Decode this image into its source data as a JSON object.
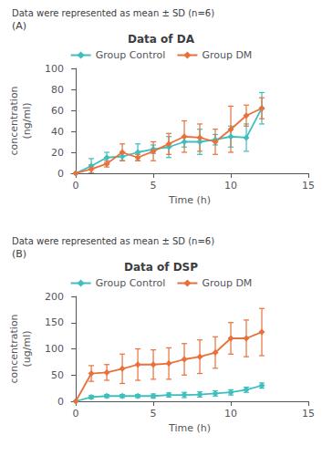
{
  "chart_data": [
    {
      "type": "line",
      "title": "Data of DA",
      "subtitle": "Data were represented as mean ± SD (n=6)",
      "annotations": [
        "(A)"
      ],
      "xlabel": "Time (h)",
      "ylabel": "concentration\n(ng/ml)",
      "x": [
        0,
        1,
        2,
        3,
        4,
        5,
        6,
        7,
        8,
        9,
        10,
        11,
        12
      ],
      "xlim": [
        -0.3,
        15
      ],
      "xticks": [
        0,
        5,
        10,
        15
      ],
      "ylim": [
        0,
        100
      ],
      "yticks": [
        0,
        20,
        40,
        60,
        80,
        100
      ],
      "marker": "diamond",
      "grid": false,
      "legend": "top",
      "series": [
        {
          "name": "Group Control",
          "color": "#3ebebe",
          "values": [
            0,
            7,
            15,
            16,
            20,
            23,
            25,
            30,
            30,
            32,
            35,
            34,
            62
          ],
          "yerr": [
            0,
            7,
            5,
            4,
            8,
            4,
            10,
            5,
            12,
            5,
            10,
            13,
            15
          ]
        },
        {
          "name": "Group DM",
          "color": "#e8703a",
          "values": [
            0,
            4,
            9,
            20,
            15,
            21,
            28,
            35,
            34,
            30,
            42,
            55,
            62
          ],
          "yerr": [
            0,
            4,
            3,
            8,
            3,
            9,
            10,
            15,
            13,
            12,
            22,
            10,
            10
          ]
        }
      ]
    },
    {
      "type": "line",
      "title": "Data of DSP",
      "subtitle": "Data were represented as mean ± SD (n=6)",
      "annotations": [
        "(B)"
      ],
      "xlabel": "Time (h)",
      "ylabel": "concentration\n(ug/ml)",
      "x": [
        0,
        1,
        2,
        3,
        4,
        5,
        6,
        7,
        8,
        9,
        10,
        11,
        12
      ],
      "xlim": [
        -0.3,
        15
      ],
      "xticks": [
        0,
        5,
        10,
        15
      ],
      "ylim": [
        0,
        200
      ],
      "yticks": [
        0,
        50,
        100,
        150,
        200
      ],
      "marker": "diamond",
      "grid": false,
      "legend": "top",
      "series": [
        {
          "name": "Group Control",
          "color": "#3ebebe",
          "values": [
            0,
            8,
            10,
            10,
            10,
            10,
            12,
            12,
            13,
            15,
            17,
            22,
            30
          ],
          "yerr": [
            0,
            3,
            3,
            3,
            3,
            4,
            4,
            5,
            5,
            5,
            5,
            5,
            5
          ]
        },
        {
          "name": "Group DM",
          "color": "#e8703a",
          "values": [
            0,
            53,
            55,
            62,
            70,
            70,
            72,
            80,
            85,
            93,
            120,
            120,
            132
          ],
          "yerr": [
            0,
            15,
            15,
            28,
            30,
            28,
            30,
            30,
            32,
            30,
            30,
            35,
            45
          ]
        }
      ]
    }
  ]
}
